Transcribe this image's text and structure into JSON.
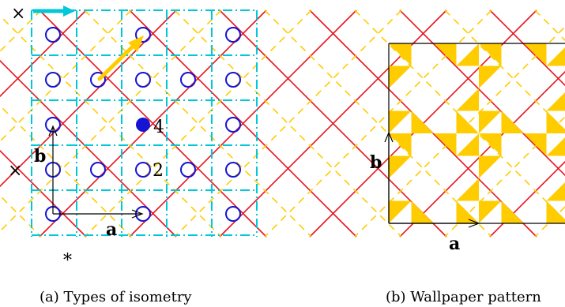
{
  "left_panel": {
    "caption": "(a) Types of isometry",
    "label_b": "b",
    "label_a": "a",
    "label_four": "4",
    "label_two": "2",
    "marker_top": "×",
    "marker_mid": "×",
    "marker_bottom": "*",
    "colors": {
      "glide": "#00c8d8",
      "reflection": "#e8141e",
      "dashed_glide": "#ffcc00",
      "rotation_center": "#1414d2",
      "arrow_yellow": "#ffcc00",
      "arrow_cyan": "#00c8d8"
    }
  },
  "right_panel": {
    "caption": "(b) Wallpaper pattern",
    "label_b": "b",
    "label_a": "a",
    "colors": {
      "tile": "#ffcc00"
    }
  }
}
